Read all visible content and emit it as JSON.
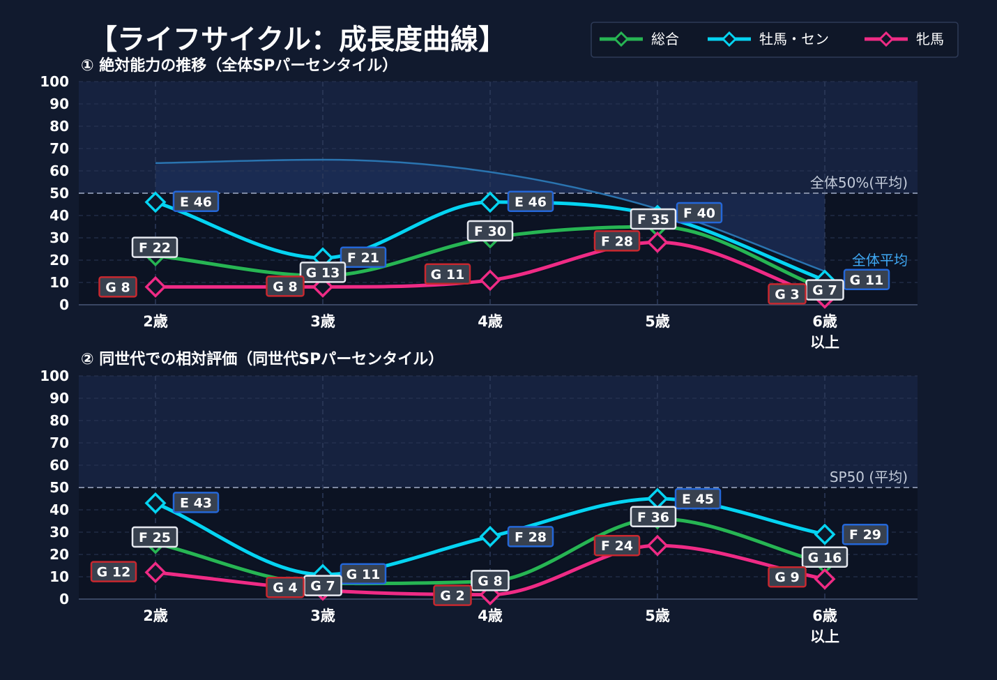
{
  "title": "【ライフサイクル：成長度曲線】",
  "colors": {
    "background": "#111a2e",
    "plot_band": "#16223f",
    "plot_lower": "#0c1323",
    "green": "#27b553",
    "cyan": "#05d4f2",
    "pink": "#ef2b85",
    "avg_line": "#2a74b0"
  },
  "legend": {
    "items": [
      {
        "label": "総合",
        "color": "#27b553"
      },
      {
        "label": "牡馬・セン",
        "color": "#05d4f2"
      },
      {
        "label": "牝馬",
        "color": "#ef2b85"
      }
    ]
  },
  "chart_data": [
    {
      "type": "line",
      "subtitle": "① 絶対能力の推移（全体SPパーセンタイル）",
      "categories": [
        "2歳",
        "3歳",
        "4歳",
        "5歳",
        "6歳\n以上"
      ],
      "ylim": [
        0,
        100
      ],
      "yticks": [
        0,
        10,
        20,
        30,
        40,
        50,
        60,
        70,
        80,
        90,
        100
      ],
      "grid": true,
      "legend_position": "top-right",
      "ref_line": {
        "value": 50,
        "label": "全体50%(平均)"
      },
      "avg_line": {
        "label": "全体平均",
        "values": [
          63.5,
          65,
          59.5,
          43,
          15
        ]
      },
      "series": [
        {
          "name": "総合",
          "color": "#27b553",
          "values": [
            22,
            13,
            30,
            35,
            7
          ],
          "labels": [
            "F 22",
            "G 13",
            "F 30",
            "F 35",
            "G 7"
          ]
        },
        {
          "name": "牡馬・セン",
          "color": "#05d4f2",
          "values": [
            46,
            21,
            46,
            40,
            11
          ],
          "labels": [
            "E 46",
            "F 21",
            "E 46",
            "F 40",
            "G 11"
          ]
        },
        {
          "name": "牝馬",
          "color": "#ef2b85",
          "values": [
            8,
            8,
            11,
            28,
            3
          ],
          "labels": [
            "G 8",
            "G 8",
            "G 11",
            "F 28",
            "G 3"
          ]
        }
      ]
    },
    {
      "type": "line",
      "subtitle": "② 同世代での相対評価（同世代SPパーセンタイル）",
      "categories": [
        "2歳",
        "3歳",
        "4歳",
        "5歳",
        "6歳\n以上"
      ],
      "ylim": [
        0,
        100
      ],
      "yticks": [
        0,
        10,
        20,
        30,
        40,
        50,
        60,
        70,
        80,
        90,
        100
      ],
      "grid": true,
      "ref_line": {
        "value": 50,
        "label": "SP50 (平均)"
      },
      "series": [
        {
          "name": "総合",
          "color": "#27b553",
          "values": [
            25,
            7,
            8,
            36,
            16
          ],
          "labels": [
            "F 25",
            "G 7",
            "G 8",
            "F 36",
            "G 16"
          ]
        },
        {
          "name": "牡馬・セン",
          "color": "#05d4f2",
          "values": [
            43,
            11,
            28,
            45,
            29
          ],
          "labels": [
            "E 43",
            "G 11",
            "F 28",
            "E 45",
            "F 29"
          ]
        },
        {
          "name": "牝馬",
          "color": "#ef2b85",
          "values": [
            12,
            4,
            2,
            24,
            9
          ],
          "labels": [
            "G 12",
            "G 4",
            "G 2",
            "F 24",
            "G 9"
          ]
        }
      ]
    }
  ]
}
